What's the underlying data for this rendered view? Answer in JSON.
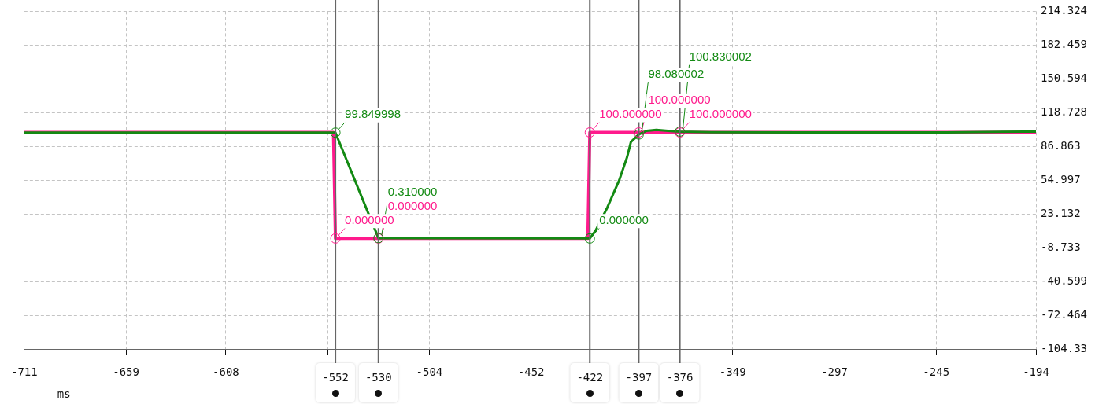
{
  "chart_data": {
    "type": "line",
    "xlabel": "ms",
    "series": [
      {
        "color": "#ff1a8c",
        "x": [
          -711,
          -553,
          -552,
          -530,
          -423,
          -422,
          -397,
          -376,
          -194
        ],
        "values": [
          100,
          100,
          0,
          0,
          0,
          100,
          100,
          100,
          100
        ],
        "value_labels": [
          null,
          null,
          "0.000000",
          "0.000000",
          null,
          "100.000000",
          "100.000000",
          "100.000000",
          null
        ]
      },
      {
        "color": "#138a13",
        "x": [
          -711,
          -552,
          -530,
          -422,
          -419,
          -413,
          -407,
          -403,
          -401,
          -397,
          -393,
          -388,
          -382,
          -376,
          -360,
          -300,
          -240,
          -200,
          -194
        ],
        "values": [
          99.8,
          99.849998,
          0.31,
          0,
          7.5,
          29.4,
          54.8,
          76.4,
          91,
          98.080002,
          101.5,
          102.5,
          101.5,
          100.830002,
          100.2,
          100,
          100,
          100.8,
          100.8
        ],
        "value_labels": [
          null,
          "99.849998",
          "0.310000",
          "0.000000",
          null,
          null,
          null,
          null,
          null,
          "98.080002",
          null,
          null,
          null,
          "100.830002",
          null,
          null,
          null,
          null,
          null
        ]
      }
    ],
    "xlim": [
      -711,
      -194
    ],
    "xticks": [
      -711,
      -659,
      -608,
      {
        "value": -556,
        "label": null
      },
      -504,
      -452,
      {
        "value": -401,
        "label": null
      },
      -349,
      -297,
      -245,
      -194
    ],
    "ylim": [
      -104.33,
      214.324
    ],
    "yticks": [
      -104.33,
      -72.464,
      -40.599,
      -8.733,
      23.132,
      54.997,
      86.863,
      118.728,
      150.594,
      182.459,
      214.324
    ],
    "grid": true,
    "legend": false,
    "line_style": "solid",
    "ref_lines": [
      {
        "axis": "x",
        "value": -552,
        "label": "-552",
        "color": "#666666"
      },
      {
        "axis": "x",
        "value": -530,
        "label": "-530",
        "color": "#666666"
      },
      {
        "axis": "x",
        "value": -422,
        "label": "-422",
        "color": "#666666"
      },
      {
        "axis": "x",
        "value": -397,
        "label": "-397",
        "color": "#666666"
      },
      {
        "axis": "x",
        "value": -376,
        "label": "-376",
        "color": "#666666"
      }
    ]
  }
}
